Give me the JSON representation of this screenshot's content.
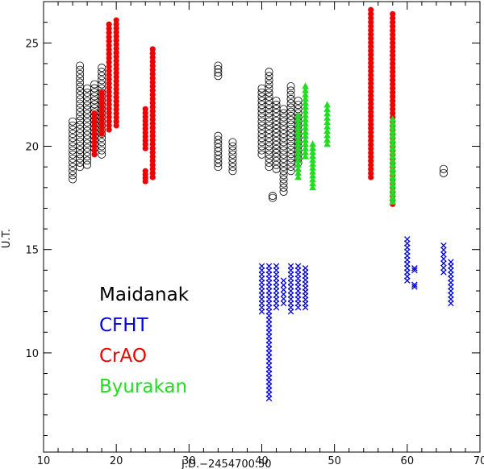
{
  "chart_data": {
    "type": "scatter",
    "xlabel": "J.D.−2454700.50",
    "ylabel": "U.T.",
    "xlim": [
      10,
      70
    ],
    "ylim": [
      5.2,
      27
    ],
    "x_ticks": [
      10,
      20,
      30,
      40,
      50,
      60,
      70
    ],
    "y_ticks": [
      10,
      15,
      20,
      25
    ],
    "grid": false,
    "legend_placement": "lower-left",
    "series": [
      {
        "name": "Maidanak",
        "color": "#000000",
        "marker": "open-circle",
        "ranges": [
          {
            "x": 14,
            "y": [
              18.4,
              21.2
            ]
          },
          {
            "x": 15,
            "y": [
              19.0,
              23.9
            ]
          },
          {
            "x": 16,
            "y": [
              19.1,
              22.8
            ]
          },
          {
            "x": 17,
            "y": [
              19.9,
              23.0
            ]
          },
          {
            "x": 18,
            "y": [
              19.6,
              23.8
            ]
          },
          {
            "x": 34,
            "y": [
              23.4,
              23.9
            ]
          },
          {
            "x": 34,
            "y": [
              19.0,
              20.5
            ]
          },
          {
            "x": 36,
            "y": [
              18.8,
              20.2
            ]
          },
          {
            "x": 40,
            "y": [
              19.6,
              22.8
            ]
          },
          {
            "x": 41,
            "y": [
              19.0,
              23.6
            ]
          },
          {
            "x": 41.5,
            "y": [
              17.5,
              17.6
            ]
          },
          {
            "x": 42,
            "y": [
              18.9,
              22.2
            ]
          },
          {
            "x": 43,
            "y": [
              17.8,
              21.8
            ]
          },
          {
            "x": 44,
            "y": [
              18.8,
              22.9
            ]
          },
          {
            "x": 45,
            "y": [
              19.2,
              22.2
            ]
          },
          {
            "x": 65,
            "y": [
              18.7,
              18.9
            ]
          }
        ]
      },
      {
        "name": "CFHT",
        "color": "#0000dd",
        "marker": "x",
        "ranges": [
          {
            "x": 40,
            "y": [
              12.0,
              14.2
            ]
          },
          {
            "x": 41,
            "y": [
              7.8,
              14.2
            ]
          },
          {
            "x": 42,
            "y": [
              12.2,
              14.2
            ]
          },
          {
            "x": 43,
            "y": [
              12.4,
              13.5
            ]
          },
          {
            "x": 44,
            "y": [
              12.0,
              14.2
            ]
          },
          {
            "x": 45,
            "y": [
              12.2,
              14.2
            ]
          },
          {
            "x": 46,
            "y": [
              12.2,
              14.1
            ]
          },
          {
            "x": 60,
            "y": [
              13.5,
              15.5
            ]
          },
          {
            "x": 61,
            "y": [
              13.2,
              13.3
            ]
          },
          {
            "x": 61,
            "y": [
              14.0,
              14.1
            ]
          },
          {
            "x": 65,
            "y": [
              13.9,
              15.2
            ]
          },
          {
            "x": 66,
            "y": [
              12.4,
              14.4
            ]
          }
        ]
      },
      {
        "name": "CrAO",
        "color": "#ee0000",
        "marker": "filled-circle",
        "ranges": [
          {
            "x": 17,
            "y": [
              19.6,
              21.6
            ]
          },
          {
            "x": 18,
            "y": [
              20.6,
              22.6
            ]
          },
          {
            "x": 19,
            "y": [
              20.8,
              25.9
            ]
          },
          {
            "x": 20,
            "y": [
              21.0,
              26.1
            ]
          },
          {
            "x": 24,
            "y": [
              18.3,
              18.8
            ]
          },
          {
            "x": 24,
            "y": [
              19.9,
              21.8
            ]
          },
          {
            "x": 25,
            "y": [
              18.5,
              24.7
            ]
          },
          {
            "x": 55,
            "y": [
              18.5,
              26.6
            ]
          },
          {
            "x": 58,
            "y": [
              17.2,
              26.4
            ]
          }
        ]
      },
      {
        "name": "Byurakan",
        "color": "#22dd22",
        "marker": "triangle",
        "ranges": [
          {
            "x": 45,
            "y": [
              18.5,
              21.5
            ]
          },
          {
            "x": 46,
            "y": [
              19.5,
              22.9
            ]
          },
          {
            "x": 47,
            "y": [
              18.0,
              20.1
            ]
          },
          {
            "x": 49,
            "y": [
              20.1,
              22.0
            ]
          },
          {
            "x": 58,
            "y": [
              17.3,
              21.3
            ]
          }
        ]
      }
    ]
  }
}
